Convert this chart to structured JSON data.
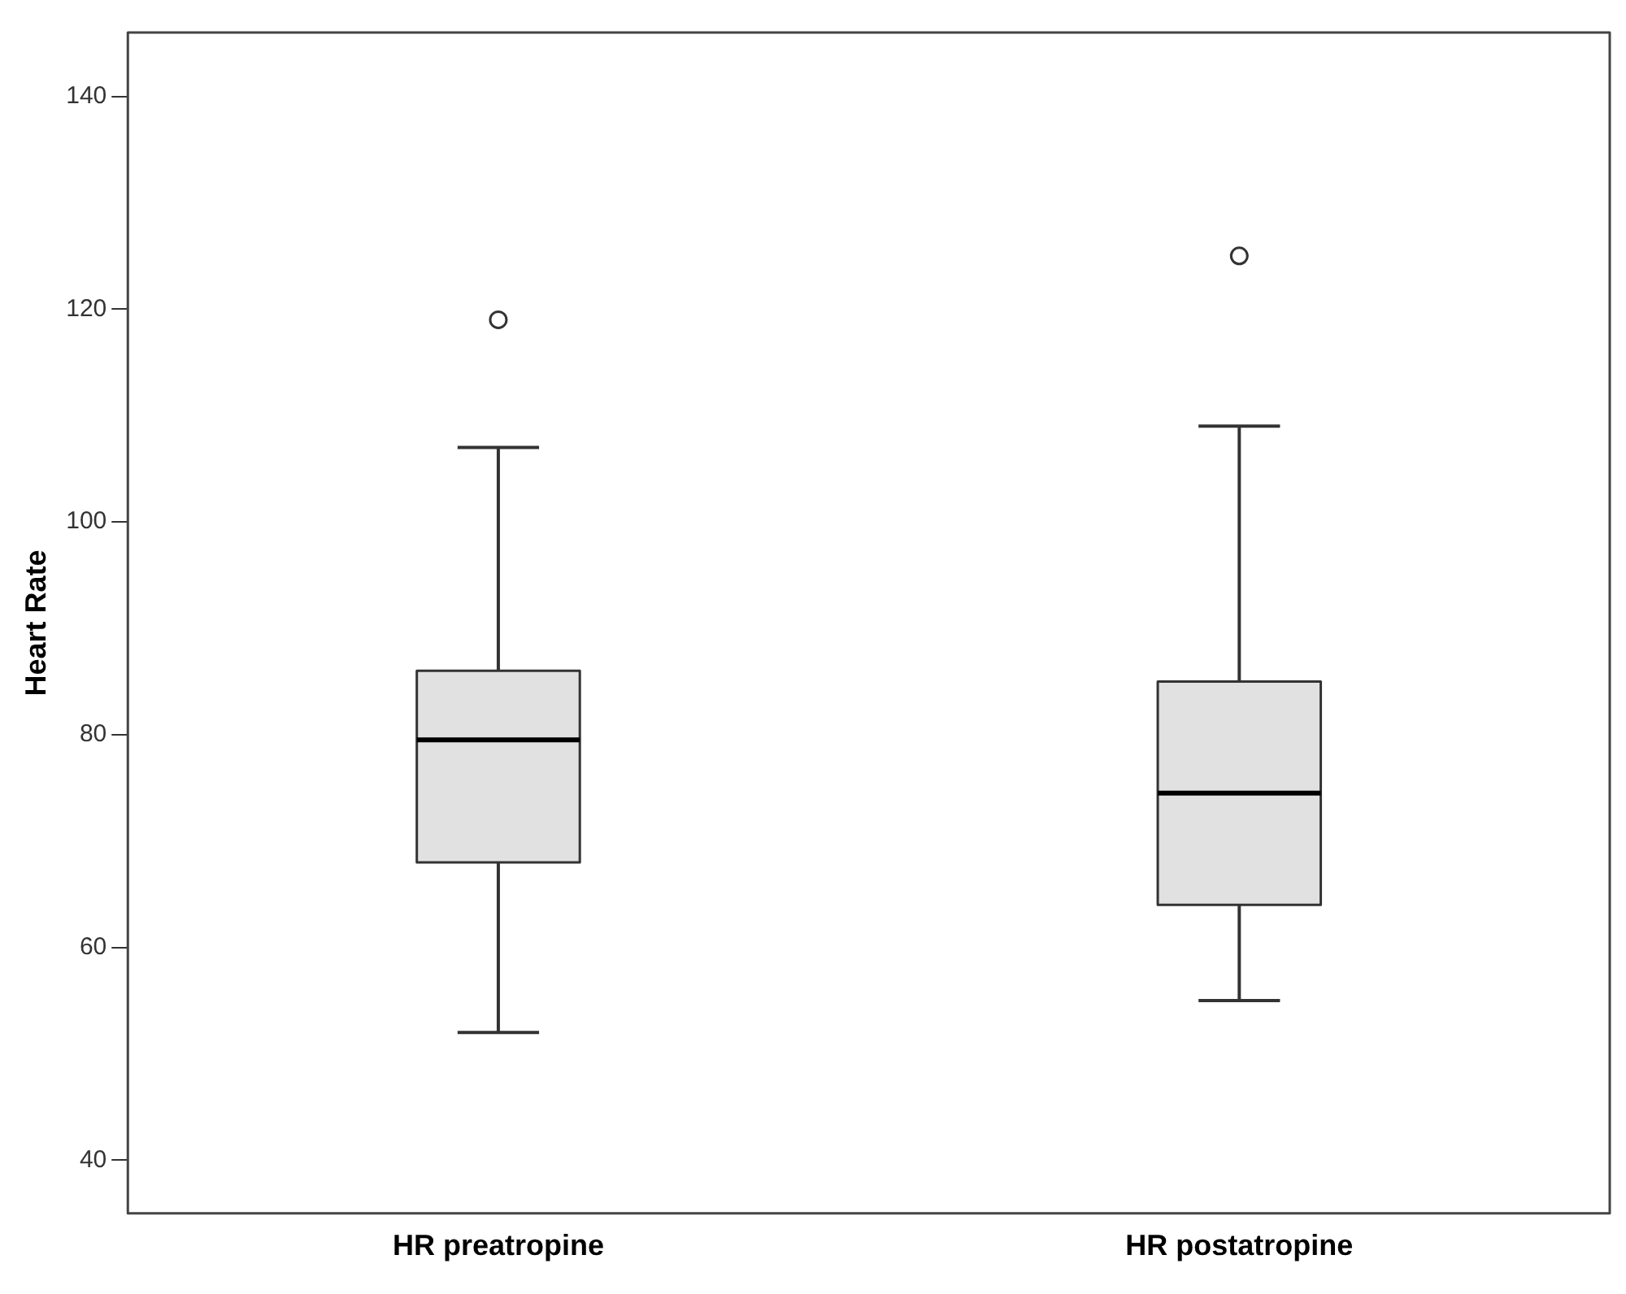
{
  "chart_data": {
    "type": "box",
    "ylabel": "Heart Rate",
    "categories": [
      "HR preatropine",
      "HR postatropine"
    ],
    "color": "#e1e1e1",
    "boxes": [
      {
        "low": 52,
        "q1": 68,
        "median": 79.5,
        "q3": 86,
        "high": 107,
        "outliers": [
          119
        ]
      },
      {
        "low": 55,
        "q1": 64,
        "median": 74.5,
        "q3": 85,
        "high": 109,
        "outliers": [
          125
        ]
      }
    ],
    "ylim": [
      35,
      146
    ],
    "yticks": [
      40,
      60,
      80,
      100,
      120,
      140
    ]
  }
}
